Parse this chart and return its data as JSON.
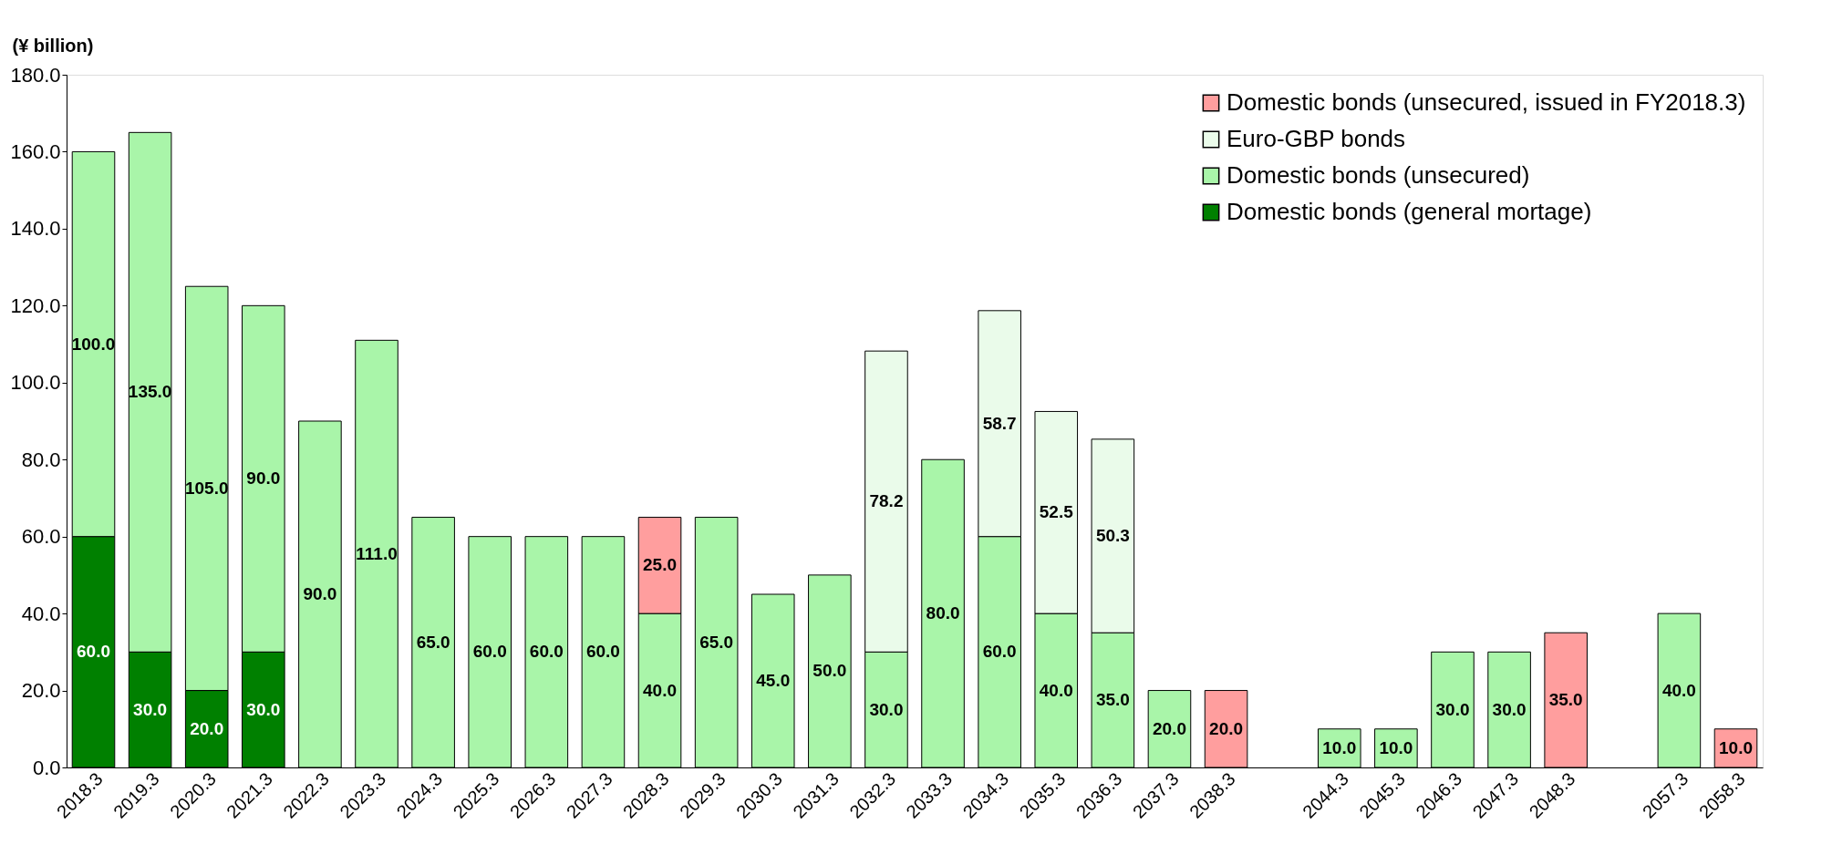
{
  "chart_data": {
    "type": "bar",
    "stacked": true,
    "ylabel": "(¥ billion)",
    "categories": [
      "2018.3",
      "2019.3",
      "2020.3",
      "2021.3",
      "2022.3",
      "2023.3",
      "2024.3",
      "2025.3",
      "2026.3",
      "2027.3",
      "2028.3",
      "2029.3",
      "2030.3",
      "2031.3",
      "2032.3",
      "2033.3",
      "2034.3",
      "2035.3",
      "2036.3",
      "2037.3",
      "2038.3",
      null,
      "2044.3",
      "2045.3",
      "2046.3",
      "2047.3",
      "2048.3",
      null,
      "2057.3",
      "2058.3"
    ],
    "series": [
      {
        "name": "Domestic bonds (general mortage)",
        "color": "#008000",
        "values": [
          60,
          30,
          20,
          30,
          null,
          null,
          null,
          null,
          null,
          null,
          null,
          null,
          null,
          null,
          null,
          null,
          null,
          null,
          null,
          null,
          null,
          null,
          null,
          null,
          null,
          null,
          null,
          null,
          null,
          null
        ],
        "value_labels": [
          "60.0",
          "30.0",
          "20.0",
          "30.0",
          null,
          null,
          null,
          null,
          null,
          null,
          null,
          null,
          null,
          null,
          null,
          null,
          null,
          null,
          null,
          null,
          null,
          null,
          null,
          null,
          null,
          null,
          null,
          null,
          null,
          null
        ]
      },
      {
        "name": "Domestic bonds (unsecured)",
        "color": "#a9f5a9",
        "values": [
          100,
          135,
          105,
          90,
          90,
          111,
          65,
          60,
          60,
          60,
          40,
          65,
          45,
          50,
          30,
          80,
          60,
          40,
          35,
          20,
          null,
          null,
          10,
          10,
          30,
          30,
          null,
          null,
          40,
          null
        ],
        "value_labels": [
          "100.0",
          "135.0",
          "105.0",
          "90.0",
          "90.0",
          "111.0",
          "65.0",
          "60.0",
          "60.0",
          "60.0",
          "40.0",
          "65.0",
          "45.0",
          "50.0",
          "30.0",
          "80.0",
          "60.0",
          "40.0",
          "35.0",
          "20.0",
          null,
          null,
          "10.0",
          "10.0",
          "30.0",
          "30.0",
          null,
          null,
          "40.0",
          null
        ]
      },
      {
        "name": "Euro-GBP bonds",
        "color": "#eafbea",
        "values": [
          null,
          null,
          null,
          null,
          null,
          null,
          null,
          null,
          null,
          null,
          null,
          null,
          null,
          null,
          78.2,
          null,
          58.7,
          52.5,
          50.3,
          null,
          null,
          null,
          null,
          null,
          null,
          null,
          null,
          null,
          null,
          null
        ],
        "value_labels": [
          null,
          null,
          null,
          null,
          null,
          null,
          null,
          null,
          null,
          null,
          null,
          null,
          null,
          null,
          "78.2",
          null,
          "58.7",
          "52.5",
          "50.3",
          null,
          null,
          null,
          null,
          null,
          null,
          null,
          null,
          null,
          null,
          null
        ]
      },
      {
        "name": "Domestic bonds (unsecured, issued in FY2018.3)",
        "color": "#ff9e9e",
        "values": [
          null,
          null,
          null,
          null,
          null,
          null,
          null,
          null,
          null,
          null,
          25,
          null,
          null,
          null,
          null,
          null,
          null,
          null,
          null,
          null,
          20,
          null,
          null,
          null,
          null,
          null,
          35,
          null,
          null,
          10
        ],
        "value_labels": [
          null,
          null,
          null,
          null,
          null,
          null,
          null,
          null,
          null,
          null,
          "25.0",
          null,
          null,
          null,
          null,
          null,
          null,
          null,
          null,
          null,
          "20.0",
          null,
          null,
          null,
          null,
          null,
          "35.0",
          null,
          null,
          "10.0"
        ]
      }
    ],
    "ylim": [
      0,
      180
    ],
    "yticks": [
      {
        "value": 0,
        "label": "0.0"
      },
      {
        "value": 20,
        "label": "20.0"
      },
      {
        "value": 40,
        "label": "40.0"
      },
      {
        "value": 60,
        "label": "60.0"
      },
      {
        "value": 80,
        "label": "80.0"
      },
      {
        "value": 100,
        "label": "100.0"
      },
      {
        "value": 120,
        "label": "120.0"
      },
      {
        "value": 140,
        "label": "140.0"
      },
      {
        "value": 160,
        "label": "160.0"
      },
      {
        "value": 180,
        "label": "180.0"
      }
    ],
    "legend": "top right",
    "grid": false
  }
}
